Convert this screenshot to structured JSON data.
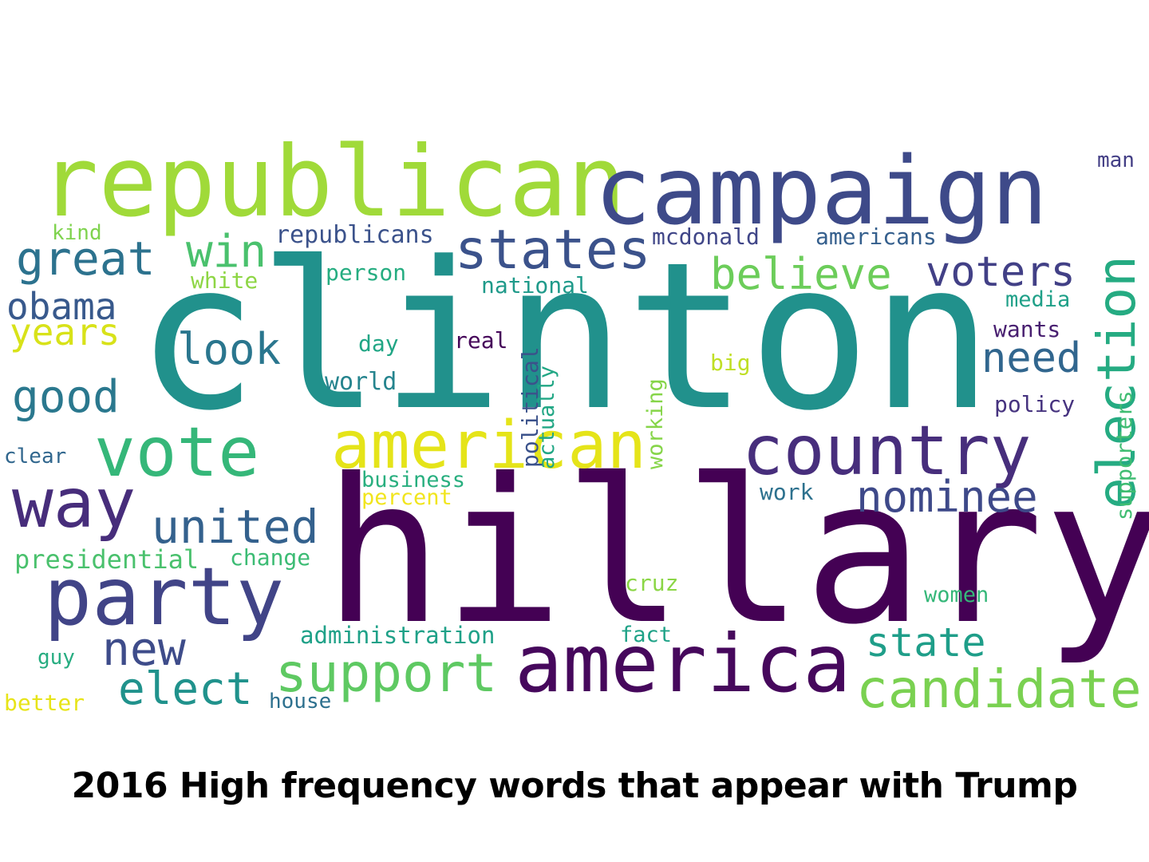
{
  "caption": "2016 High frequency words that appear with Trump",
  "words": [
    {
      "text": "clinton",
      "color": "#21918c"
    },
    {
      "text": "hillary",
      "color": "#440154"
    },
    {
      "text": "republican",
      "color": "#a0da39"
    },
    {
      "text": "campaign",
      "color": "#3e4a89"
    },
    {
      "text": "america",
      "color": "#46085c"
    },
    {
      "text": "country",
      "color": "#472e7c"
    },
    {
      "text": "party",
      "color": "#414487"
    },
    {
      "text": "american",
      "color": "#e5e419"
    },
    {
      "text": "vote",
      "color": "#35b779"
    },
    {
      "text": "way",
      "color": "#472d7b"
    },
    {
      "text": "states",
      "color": "#3b528b"
    },
    {
      "text": "support",
      "color": "#5ec962"
    },
    {
      "text": "election",
      "color": "#25ab82"
    },
    {
      "text": "candidate",
      "color": "#7ad151"
    },
    {
      "text": "united",
      "color": "#34618d"
    },
    {
      "text": "great",
      "color": "#2c728e"
    },
    {
      "text": "new",
      "color": "#3e4c8a"
    },
    {
      "text": "elect",
      "color": "#20928c"
    },
    {
      "text": "good",
      "color": "#2a788e"
    },
    {
      "text": "nominee",
      "color": "#3e4989"
    },
    {
      "text": "voters",
      "color": "#424086"
    },
    {
      "text": "believe",
      "color": "#6ccd5a"
    },
    {
      "text": "state",
      "color": "#1f9e89"
    },
    {
      "text": "win",
      "color": "#4ac16d"
    },
    {
      "text": "look",
      "color": "#2a768e"
    },
    {
      "text": "need",
      "color": "#31668e"
    },
    {
      "text": "obama",
      "color": "#38598c"
    },
    {
      "text": "years",
      "color": "#d8e219"
    },
    {
      "text": "presidential",
      "color": "#4ac16d"
    },
    {
      "text": "republicans",
      "color": "#3b528b"
    },
    {
      "text": "mcdonald",
      "color": "#404688"
    },
    {
      "text": "americans",
      "color": "#355f8d"
    },
    {
      "text": "administration",
      "color": "#1fa188"
    },
    {
      "text": "business",
      "color": "#29af7f"
    },
    {
      "text": "percent",
      "color": "#f1e51d"
    },
    {
      "text": "political",
      "color": "#3b528b"
    },
    {
      "text": "actually",
      "color": "#22a785"
    },
    {
      "text": "working",
      "color": "#86d549"
    },
    {
      "text": "supporters",
      "color": "#40bd72"
    },
    {
      "text": "change",
      "color": "#3cbc74"
    },
    {
      "text": "national",
      "color": "#1f9a8a"
    },
    {
      "text": "person",
      "color": "#26ad81"
    },
    {
      "text": "white",
      "color": "#8ed645"
    },
    {
      "text": "world",
      "color": "#25848e"
    },
    {
      "text": "media",
      "color": "#1fa088"
    },
    {
      "text": "wants",
      "color": "#481f70"
    },
    {
      "text": "policy",
      "color": "#46337f"
    },
    {
      "text": "day",
      "color": "#21a685"
    },
    {
      "text": "real",
      "color": "#450559"
    },
    {
      "text": "big",
      "color": "#c0df25"
    },
    {
      "text": "cruz",
      "color": "#8bd646"
    },
    {
      "text": "women",
      "color": "#35b779"
    },
    {
      "text": "work",
      "color": "#2d718e"
    },
    {
      "text": "fact",
      "color": "#1fa287"
    },
    {
      "text": "house",
      "color": "#2d708e"
    },
    {
      "text": "better",
      "color": "#e7e419"
    },
    {
      "text": "guy",
      "color": "#27ad81"
    },
    {
      "text": "clear",
      "color": "#31678e"
    },
    {
      "text": "kind",
      "color": "#7fd34e"
    },
    {
      "text": "man",
      "color": "#433e85"
    }
  ]
}
